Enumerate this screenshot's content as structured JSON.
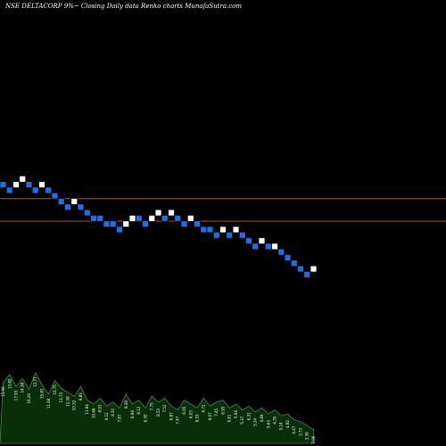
{
  "chart_title": "NSE DELTACORP 9%~ Closing Daily data Renko charts MunafaSutra.com",
  "colors": {
    "background": "#000000",
    "up_brick": "#ffffff",
    "down_brick": "#1e6fe6",
    "brick_outline": "#000000",
    "level_line": "#b4551e",
    "volume_fill": "#0a2e0a",
    "volume_stroke": "#3f8a3f",
    "label_color": "#ffffff"
  },
  "chart_data": {
    "type": "renko",
    "title": "NSE DELTACORP 9%~ Closing Daily data Renko charts MunafaSutra.com",
    "bricks": [
      {
        "dir": "down",
        "level": 0
      },
      {
        "dir": "down",
        "level": -1
      },
      {
        "dir": "up",
        "level": 0
      },
      {
        "dir": "up",
        "level": 1
      },
      {
        "dir": "down",
        "level": 0
      },
      {
        "dir": "down",
        "level": -1
      },
      {
        "dir": "up",
        "level": 0
      },
      {
        "dir": "down",
        "level": -1
      },
      {
        "dir": "down",
        "level": -2
      },
      {
        "dir": "down",
        "level": -3
      },
      {
        "dir": "down",
        "level": -4
      },
      {
        "dir": "up",
        "level": -3
      },
      {
        "dir": "down",
        "level": -4
      },
      {
        "dir": "down",
        "level": -5
      },
      {
        "dir": "down",
        "level": -6
      },
      {
        "dir": "down",
        "level": -6
      },
      {
        "dir": "down",
        "level": -7
      },
      {
        "dir": "down",
        "level": -7
      },
      {
        "dir": "down",
        "level": -8
      },
      {
        "dir": "up",
        "level": -7
      },
      {
        "dir": "up",
        "level": -6
      },
      {
        "dir": "down",
        "level": -6
      },
      {
        "dir": "down",
        "level": -7
      },
      {
        "dir": "up",
        "level": -6
      },
      {
        "dir": "up",
        "level": -5
      },
      {
        "dir": "down",
        "level": -6
      },
      {
        "dir": "up",
        "level": -5
      },
      {
        "dir": "down",
        "level": -6
      },
      {
        "dir": "down",
        "level": -7
      },
      {
        "dir": "up",
        "level": -6
      },
      {
        "dir": "down",
        "level": -7
      },
      {
        "dir": "down",
        "level": -8
      },
      {
        "dir": "down",
        "level": -8
      },
      {
        "dir": "down",
        "level": -9
      },
      {
        "dir": "up",
        "level": -8
      },
      {
        "dir": "down",
        "level": -9
      },
      {
        "dir": "up",
        "level": -8
      },
      {
        "dir": "down",
        "level": -9
      },
      {
        "dir": "down",
        "level": -10
      },
      {
        "dir": "down",
        "level": -11
      },
      {
        "dir": "up",
        "level": -10
      },
      {
        "dir": "down",
        "level": -11
      },
      {
        "dir": "up",
        "level": -11
      },
      {
        "dir": "down",
        "level": -12
      },
      {
        "dir": "down",
        "level": -13
      },
      {
        "dir": "down",
        "level": -14
      },
      {
        "dir": "down",
        "level": -15
      },
      {
        "dir": "down",
        "level": -16
      },
      {
        "dir": "up",
        "level": -15
      }
    ],
    "reference_levels": [
      -2.5,
      -6.5
    ],
    "volume_heights": [
      0.62,
      0.7,
      0.58,
      0.66,
      0.55,
      0.72,
      0.6,
      0.5,
      0.64,
      0.56,
      0.52,
      0.48,
      0.58,
      0.44,
      0.4,
      0.46,
      0.38,
      0.42,
      0.36,
      0.5,
      0.4,
      0.44,
      0.36,
      0.48,
      0.42,
      0.46,
      0.38,
      0.34,
      0.44,
      0.4,
      0.36,
      0.46,
      0.38,
      0.42,
      0.44,
      0.36,
      0.4,
      0.34,
      0.38,
      0.32,
      0.36,
      0.3,
      0.34,
      0.28,
      0.3,
      0.24,
      0.22,
      0.18,
      0.14
    ],
    "volume_labels": [
      "15.96",
      "13.82",
      "17.93",
      "14.38",
      "16.29",
      "12.77",
      "15.81",
      "11.64",
      "10.75",
      "13.73",
      "12.38",
      "10.32",
      "9.83",
      "11.94",
      "10.66",
      "8.91",
      "9.12",
      "8.32",
      "7.87",
      "9.39",
      "6.94",
      "8.12",
      "6.30",
      "7.75",
      "8.53",
      "7.52",
      "6.87",
      "7.47",
      "6.65",
      "6.03",
      "8.33",
      "6.72",
      "8.07",
      "7.45",
      "6.95",
      "6.61",
      "5.94",
      "5.37",
      "6.31",
      "5.24",
      "4.89",
      "5.63",
      "4.35",
      "5.14",
      "4.92",
      "4.47",
      "3.73",
      "3.39",
      "3.96"
    ]
  }
}
